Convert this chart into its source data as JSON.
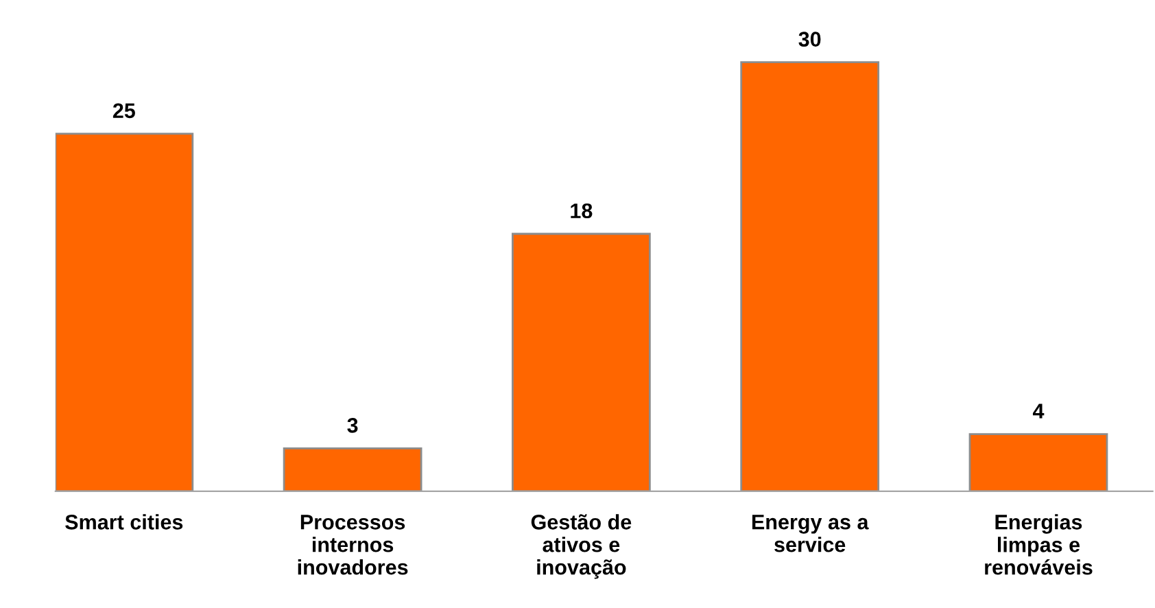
{
  "chart_data": {
    "type": "bar",
    "categories": [
      "Smart cities",
      "Processos internos inovadores",
      "Gestão de ativos e inovação",
      "Energy as a service",
      "Energias limpas e renováveis"
    ],
    "values": [
      25,
      3,
      18,
      30,
      4
    ],
    "color": "#ff6600",
    "data_labels": true,
    "grid": false,
    "legend": false
  }
}
